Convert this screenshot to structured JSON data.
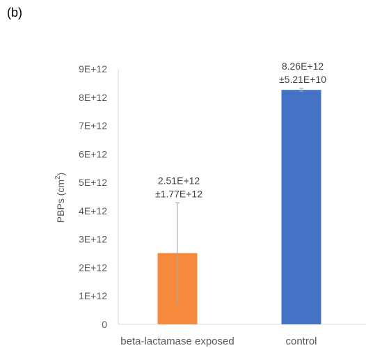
{
  "panel_label": "(b)",
  "chart_data": {
    "type": "bar",
    "categories": [
      "beta-lactamase exposed",
      "control"
    ],
    "values": [
      2510000000000.0,
      8260000000000.0
    ],
    "errors": [
      1770000000000.0,
      52100000000.0
    ],
    "data_labels": [
      [
        "2.51E+12",
        "±1.77E+12"
      ],
      [
        "8.26E+12",
        "±5.21E+10"
      ]
    ],
    "colors": [
      "#F58A3C",
      "#4472C4"
    ],
    "error_color": "#A6A6A6",
    "ylabel": "PBPs (cm²)",
    "ylabel_base": "PBPs (cm",
    "ylabel_sup": "2",
    "ylabel_close": ")",
    "ylim": [
      0,
      9000000000000.0
    ],
    "yticks": [
      0,
      1000000000000.0,
      2000000000000.0,
      3000000000000.0,
      4000000000000.0,
      5000000000000.0,
      6000000000000.0,
      7000000000000.0,
      8000000000000.0,
      9000000000000.0
    ],
    "ytick_labels": [
      "0",
      "1E+12",
      "2E+12",
      "3E+12",
      "4E+12",
      "5E+12",
      "6E+12",
      "7E+12",
      "8E+12",
      "9E+12"
    ],
    "grid": false,
    "legend": false
  }
}
